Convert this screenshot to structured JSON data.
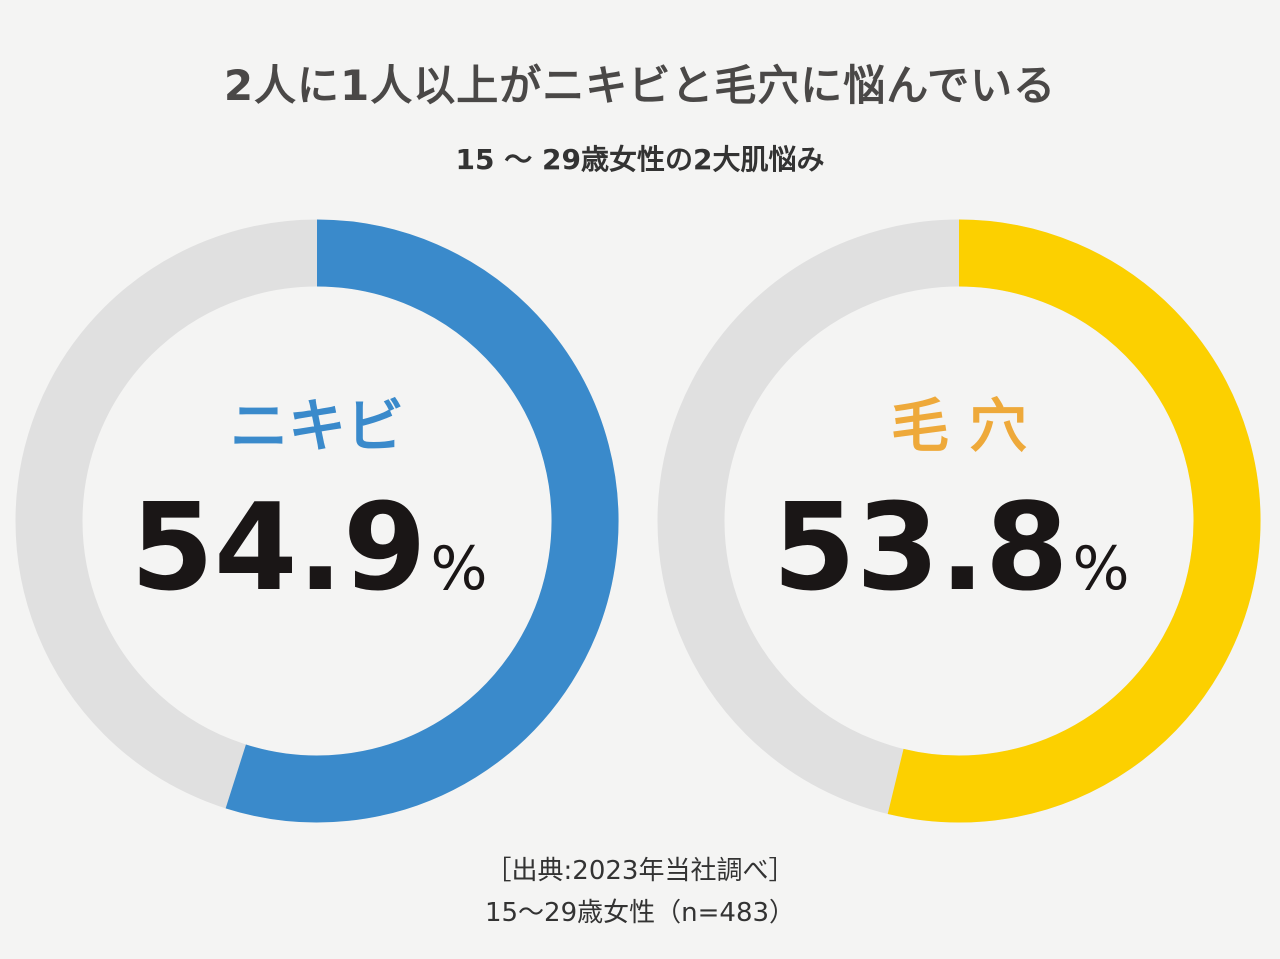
{
  "chart_data": {
    "type": "pie",
    "title": "2人に1人以上がニキビと毛穴に悩んでいる",
    "subtitle": "15 ～ 29歳女性の2大肌悩み",
    "series": [
      {
        "name": "ニキビ",
        "value": 54.9,
        "value_label": "54.9",
        "unit": "%",
        "color": "#3a8acb",
        "label_color": "#3a8acb"
      },
      {
        "name": "毛 穴",
        "value": 53.8,
        "value_label": "53.8",
        "unit": "%",
        "color": "#fcd000",
        "label_color": "#eea93a"
      }
    ],
    "remainder_color": "#e0e0e0",
    "max": 100
  },
  "source": {
    "line1": "［出典:2023年当社調べ］",
    "line2": "15～29歳女性（n=483）"
  }
}
